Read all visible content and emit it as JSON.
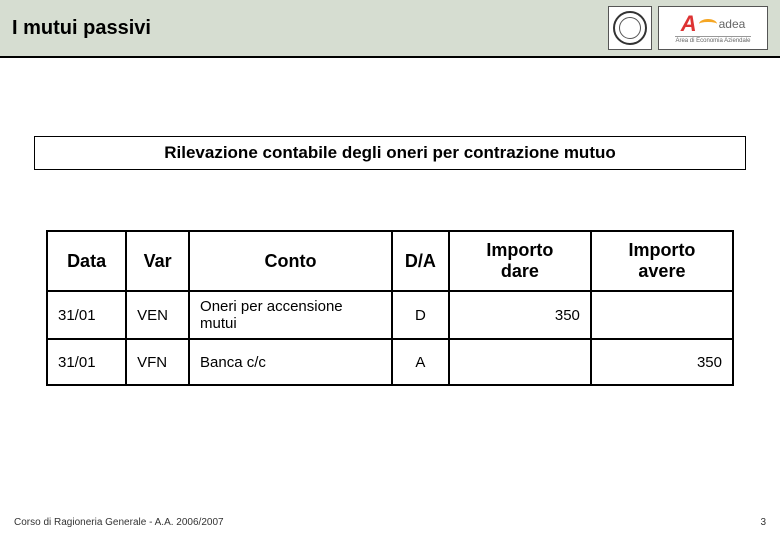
{
  "header": {
    "title": "I mutui passivi",
    "logo2": {
      "brand_letter": "A",
      "brand_text": "adea",
      "subtitle": "Area di Economia Aziendale"
    }
  },
  "subtitle": "Rilevazione contabile degli oneri per contrazione mutuo",
  "table": {
    "columns": {
      "data": "Data",
      "var": "Var",
      "conto": "Conto",
      "da": "D/A",
      "dare_line1": "Importo",
      "dare_line2": "dare",
      "avere_line1": "Importo",
      "avere_line2": "avere"
    },
    "rows": [
      {
        "data": "31/01",
        "var": "VEN",
        "conto": "Oneri per accensione mutui",
        "da": "D",
        "dare": "350",
        "avere": ""
      },
      {
        "data": "31/01",
        "var": "VFN",
        "conto": "Banca c/c",
        "da": "A",
        "dare": "",
        "avere": "350"
      }
    ]
  },
  "footer": {
    "left": "Corso di Ragioneria Generale - A.A. 2006/2007",
    "page": "3"
  },
  "colors": {
    "header_bg": "#d6ddd1",
    "border": "#000000",
    "accent_red": "#d33",
    "accent_orange": "#f5a623"
  }
}
